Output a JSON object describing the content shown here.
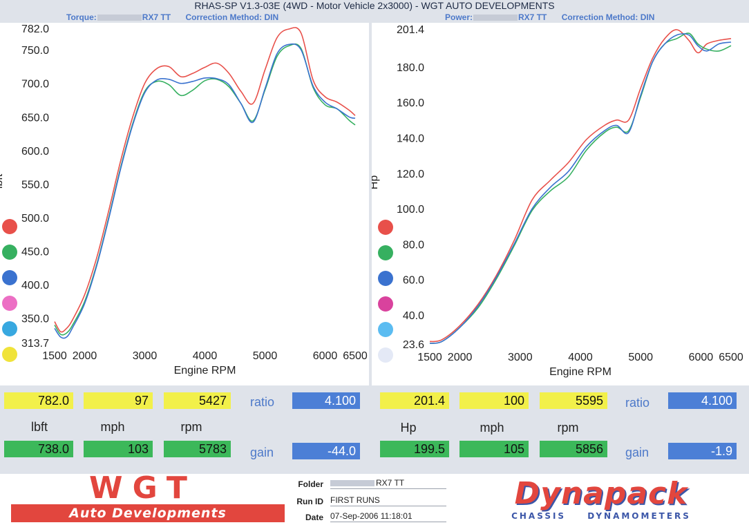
{
  "header": {
    "title": "RHAS-SP V1.3-03E  (4WD - Motor Vehicle 2x3000) - WGT AUTO DEVELOPMENTS"
  },
  "torque_panel": {
    "label_prefix": "Torque:",
    "vehicle": "RX7 TT",
    "correction": "Correction Method: DIN",
    "peak_value": "782.0",
    "peak_speed": "97",
    "peak_rpm": "5427",
    "ratio_label": "ratio",
    "ratio_value": "4.100",
    "unit_value": "lbft",
    "unit_speed": "mph",
    "unit_rpm": "rpm",
    "cur_value": "738.0",
    "cur_speed": "103",
    "cur_rpm": "5783",
    "gain_label": "gain",
    "gain_value": "-44.0"
  },
  "power_panel": {
    "label_prefix": "Power:",
    "vehicle": "RX7 TT",
    "correction": "Correction Method: DIN",
    "peak_value": "201.4",
    "peak_speed": "100",
    "peak_rpm": "5595",
    "ratio_label": "ratio",
    "ratio_value": "4.100",
    "unit_value": "Hp",
    "unit_speed": "mph",
    "unit_rpm": "rpm",
    "cur_value": "199.5",
    "cur_speed": "105",
    "cur_rpm": "5856",
    "gain_label": "gain",
    "gain_value": "-1.9"
  },
  "footer": {
    "wgt_title": "WGT",
    "wgt_subtitle": "Auto Developments",
    "folder_label": "Folder",
    "folder_value": "RX7 TT",
    "run_label": "Run ID",
    "run_value": "FIRST RUNS",
    "date_label": "Date",
    "date_value": "07-Sep-2006  11:18:01",
    "dyna_name": "Dynapack",
    "dyna_sub": "CHASSIS DYNAMOMETERS"
  },
  "colors": {
    "series": [
      "#e8504a",
      "#36b060",
      "#3a72cf",
      "#ec6fc4",
      "#38a8e0",
      "#f0e33a"
    ],
    "power_legend": [
      "#e8504a",
      "#36b060",
      "#3a72cf",
      "#d9429d",
      "#5bbcf1",
      "#e4e9f6"
    ],
    "yellow_box": "#f2f04a",
    "green_box": "#3cb85a",
    "blue_box": "#4c7fd6"
  },
  "chart_data": [
    {
      "type": "line",
      "xlabel": "Engine RPM",
      "ylabel": "lbft",
      "xlim": [
        1500,
        6500
      ],
      "ylim": [
        313.7,
        782.0
      ],
      "x_ticks": [
        "1500",
        "2000",
        "3000",
        "4000",
        "5000",
        "6000",
        "6500"
      ],
      "y_ticks": [
        "782.0",
        "750.0",
        "700.0",
        "650.0",
        "600.0",
        "550.0",
        "500.0",
        "450.0",
        "400.0",
        "350.0",
        "313.7"
      ],
      "series": [
        {
          "color": "#e8504a",
          "x": [
            1500,
            1600,
            1700,
            1800,
            2000,
            2200,
            2400,
            2600,
            2800,
            3000,
            3200,
            3400,
            3600,
            3800,
            4000,
            4200,
            4400,
            4600,
            4800,
            5000,
            5200,
            5400,
            5600,
            5800,
            6000,
            6200,
            6400,
            6500
          ],
          "y": [
            345,
            330,
            335,
            348,
            385,
            440,
            510,
            585,
            650,
            700,
            722,
            725,
            710,
            715,
            724,
            730,
            715,
            688,
            670,
            720,
            768,
            781,
            775,
            705,
            680,
            672,
            660,
            652
          ]
        },
        {
          "color": "#36b060",
          "x": [
            1500,
            1600,
            1700,
            1800,
            2000,
            2200,
            2400,
            2600,
            2800,
            3000,
            3200,
            3400,
            3600,
            3800,
            4000,
            4200,
            4400,
            4600,
            4800,
            5000,
            5200,
            5400,
            5600,
            5800,
            6000,
            6200,
            6400,
            6500
          ],
          "y": [
            340,
            326,
            328,
            340,
            375,
            430,
            500,
            575,
            640,
            688,
            703,
            698,
            682,
            690,
            704,
            706,
            695,
            670,
            644,
            690,
            740,
            756,
            752,
            694,
            668,
            662,
            645,
            638
          ]
        },
        {
          "color": "#3a72cf",
          "x": [
            1500,
            1600,
            1700,
            1800,
            2000,
            2200,
            2400,
            2600,
            2800,
            3000,
            3200,
            3400,
            3600,
            3800,
            4000,
            4200,
            4400,
            4600,
            4800,
            5000,
            5200,
            5400,
            5600,
            5800,
            6000,
            6200,
            6400,
            6500
          ],
          "y": [
            335,
            322,
            322,
            336,
            372,
            428,
            498,
            573,
            638,
            686,
            705,
            706,
            700,
            703,
            708,
            707,
            698,
            670,
            642,
            692,
            744,
            758,
            750,
            696,
            672,
            662,
            650,
            648
          ]
        }
      ]
    },
    {
      "type": "line",
      "xlabel": "Engine RPM",
      "ylabel": "Hp",
      "xlim": [
        1500,
        6500
      ],
      "ylim": [
        23.6,
        201.4
      ],
      "x_ticks": [
        "1500",
        "2000",
        "3000",
        "4000",
        "5000",
        "6000",
        "6500"
      ],
      "y_ticks": [
        "201.4",
        "180.0",
        "160.0",
        "140.0",
        "120.0",
        "100.0",
        "80.0",
        "60.0",
        "40.0",
        "23.6"
      ],
      "series": [
        {
          "color": "#e8504a",
          "x": [
            1500,
            1700,
            2000,
            2300,
            2600,
            2900,
            3200,
            3500,
            3800,
            4100,
            4400,
            4600,
            4800,
            5000,
            5200,
            5400,
            5600,
            5800,
            5950,
            6100,
            6300,
            6500
          ],
          "y": [
            25,
            26,
            34,
            46,
            62,
            82,
            105,
            116,
            126,
            139,
            147,
            150,
            150,
            168,
            185,
            196,
            201,
            195,
            188,
            193,
            195,
            196
          ]
        },
        {
          "color": "#36b060",
          "x": [
            1500,
            1700,
            2000,
            2300,
            2600,
            2900,
            3200,
            3500,
            3800,
            4100,
            4400,
            4600,
            4800,
            5000,
            5200,
            5400,
            5600,
            5800,
            5950,
            6100,
            6300,
            6500
          ],
          "y": [
            24,
            25,
            33,
            44,
            60,
            79,
            99,
            110,
            118,
            133,
            143,
            146,
            144,
            163,
            183,
            193,
            196,
            199,
            193,
            190,
            189,
            192
          ]
        },
        {
          "color": "#3a72cf",
          "x": [
            1500,
            1700,
            2000,
            2300,
            2600,
            2900,
            3200,
            3500,
            3800,
            4100,
            4400,
            4600,
            4800,
            5000,
            5200,
            5400,
            5600,
            5800,
            5950,
            6100,
            6300,
            6500
          ],
          "y": [
            24,
            25,
            33,
            45,
            61,
            80,
            100,
            112,
            121,
            135,
            144,
            147,
            143,
            164,
            183,
            193,
            198,
            198,
            192,
            189,
            193,
            194
          ]
        }
      ]
    }
  ]
}
